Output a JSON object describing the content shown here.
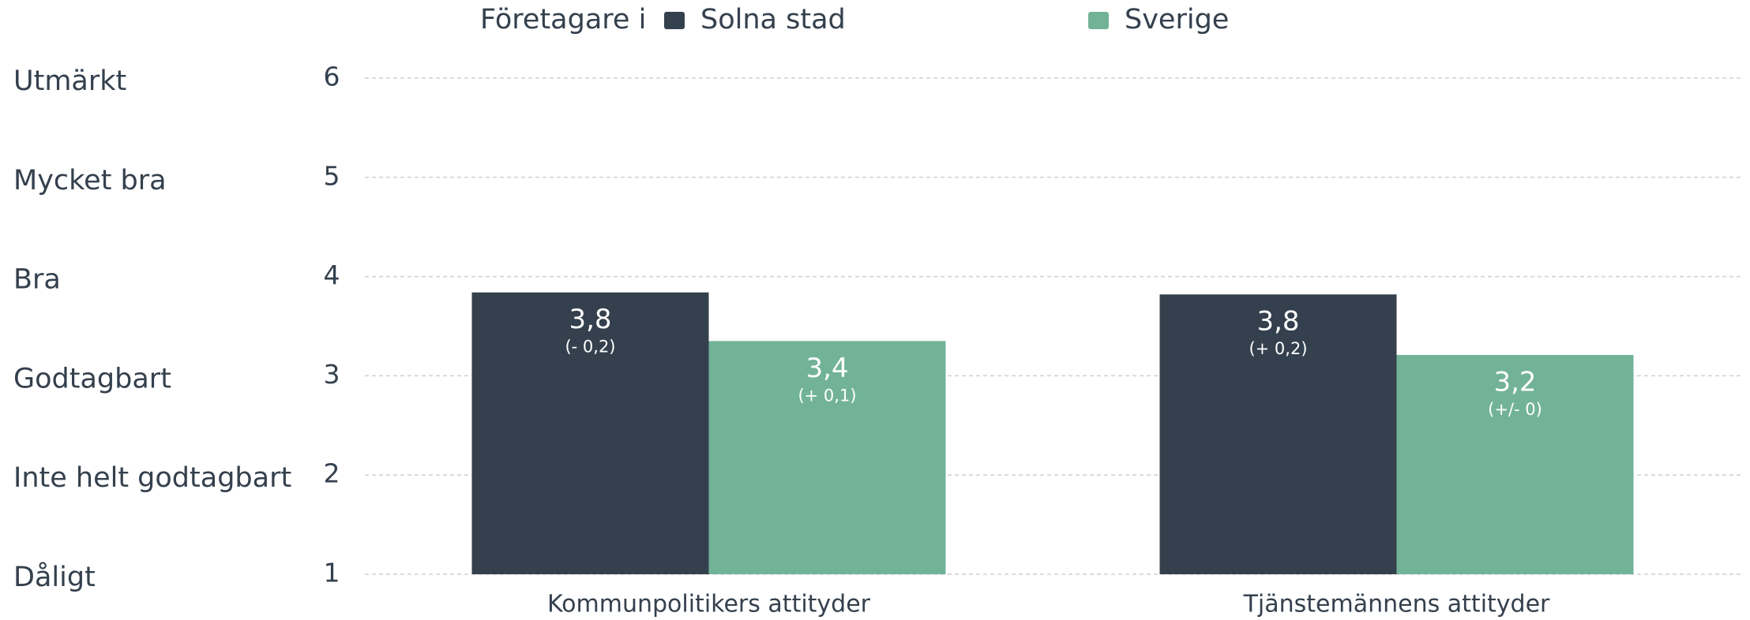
{
  "chart_data": {
    "type": "bar",
    "legend_title": "Företagare i",
    "categories": [
      "Kommunpolitikers attityder",
      "Tjänstemännens attityder"
    ],
    "series": [
      {
        "name": "Solna stad",
        "color": "#34404d",
        "values": [
          3.84,
          3.82
        ],
        "value_labels": [
          "3,8",
          "3,8"
        ],
        "change_labels": [
          "(- 0,2)",
          "(+ 0,2)"
        ]
      },
      {
        "name": "Sverige",
        "color": "#72b398",
        "values": [
          3.35,
          3.21
        ],
        "value_labels": [
          "3,4",
          "3,2"
        ],
        "change_labels": [
          "(+ 0,1)",
          "(+/- 0)"
        ]
      }
    ],
    "ylim": [
      1,
      6
    ],
    "yticks": [
      1,
      2,
      3,
      4,
      5,
      6
    ],
    "ytick_names": [
      "Dåligt",
      "Inte helt godtagbart",
      "Godtagbart",
      "Bra",
      "Mycket bra",
      "Utmärkt"
    ],
    "grid": true
  }
}
